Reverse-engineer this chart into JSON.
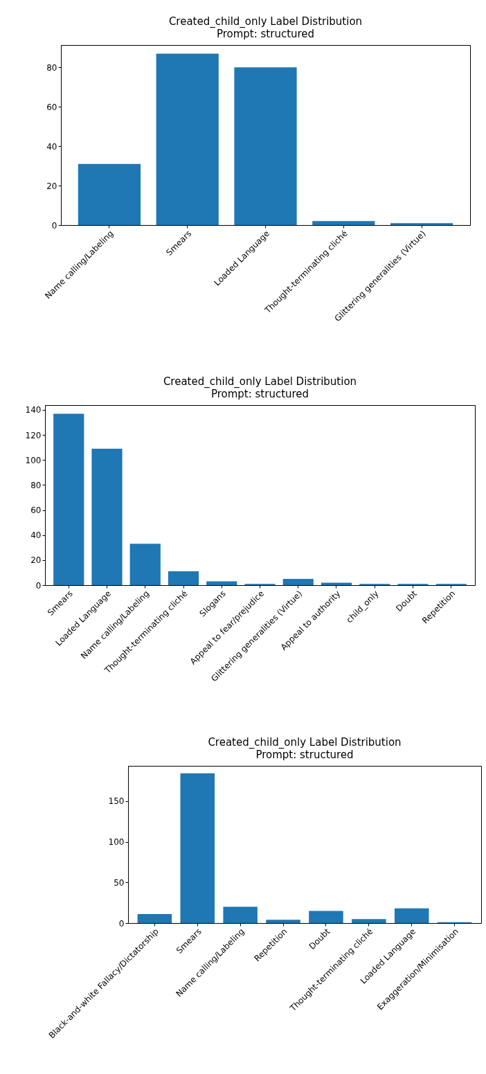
{
  "chart_data": [
    {
      "type": "bar",
      "title": "Created_child_only Label Distribution",
      "subtitle": "Prompt: structured",
      "categories": [
        "Name calling/Labeling",
        "Smears",
        "Loaded Language",
        "Thought-terminating cliché",
        "Glittering generalities (Virtue)"
      ],
      "values": [
        31,
        87,
        80,
        2,
        1
      ],
      "color": "#1f77b4",
      "ylim": [
        0,
        91.35
      ],
      "yticks": [
        0,
        20,
        40,
        60,
        80
      ],
      "grid": false
    },
    {
      "type": "bar",
      "title": "Created_child_only Label Distribution",
      "subtitle": "Prompt: structured",
      "categories": [
        "Smears",
        "Loaded Language",
        "Name calling/Labeling",
        "Thought-terminating cliché",
        "Slogans",
        "Appeal to fear/prejudice",
        "Glittering generalities (Virtue)",
        "Appeal to authority",
        "child_only",
        "Doubt",
        "Repetition"
      ],
      "values": [
        137,
        109,
        33,
        11,
        3,
        1,
        5,
        2,
        1,
        1,
        1
      ],
      "color": "#1f77b4",
      "ylim": [
        0,
        143.85
      ],
      "yticks": [
        0,
        20,
        40,
        60,
        80,
        100,
        120,
        140
      ],
      "grid": false
    },
    {
      "type": "bar",
      "title": "Created_child_only Label Distribution",
      "subtitle": "Prompt: structured",
      "categories": [
        "Black-and-white Fallacy/Dictatorship",
        "Smears",
        "Name calling/Labeling",
        "Repetition",
        "Doubt",
        "Thought-terminating cliché",
        "Loaded Language",
        "Exaggeration/Minimisation"
      ],
      "values": [
        11,
        184,
        20,
        4,
        15,
        5,
        18,
        1
      ],
      "color": "#1f77b4",
      "ylim": [
        0,
        193.2
      ],
      "yticks": [
        0,
        50,
        100,
        150
      ],
      "grid": false
    }
  ]
}
